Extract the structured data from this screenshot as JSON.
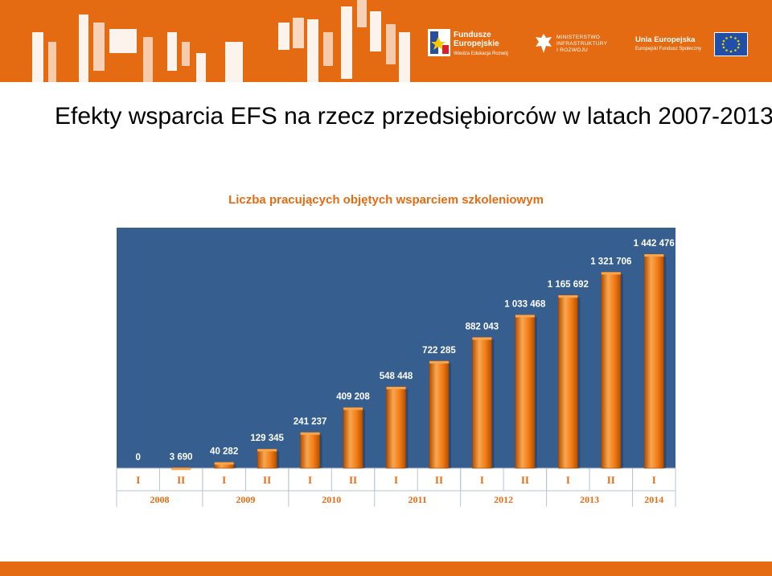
{
  "page": {
    "title": "Efekty wsparcia EFS na rzecz przedsiębiorców w latach 2007-2013"
  },
  "logos": {
    "fe": {
      "line1": "Fundusze",
      "line2": "Europejskie",
      "line3": "Wiedza Edukacja Rozwój"
    },
    "ministry": {
      "line1": "MINISTERSTWO",
      "line2": "INFRASTRUKTURY",
      "line3": "I ROZWOJU"
    },
    "eu": {
      "line1": "Unia Europejska",
      "line2": "Europejski Fundusz Społeczny"
    }
  },
  "colors": {
    "banner": "#e56b12",
    "plot_bg": "#365e8e",
    "bar": "#f07a14",
    "bar_light": "#f9a650",
    "bar_dark": "#b44f00",
    "axis_text": "#e56b12",
    "grid": "#b9c3cf"
  },
  "chart_data": {
    "type": "bar",
    "title": "Liczba pracujących objętych wsparciem szkoleniowym",
    "categories": [
      "I",
      "II",
      "I",
      "II",
      "I",
      "II",
      "I",
      "II",
      "I",
      "II",
      "I",
      "II",
      "I"
    ],
    "groups": [
      {
        "label": "2008",
        "span": 2
      },
      {
        "label": "2009",
        "span": 2
      },
      {
        "label": "2010",
        "span": 2
      },
      {
        "label": "2011",
        "span": 2
      },
      {
        "label": "2012",
        "span": 2
      },
      {
        "label": "2013",
        "span": 2
      },
      {
        "label": "2014",
        "span": 1
      }
    ],
    "values": [
      0,
      3690,
      40282,
      129345,
      241237,
      409208,
      548448,
      722285,
      882043,
      1033468,
      1165692,
      1321706,
      1442476
    ],
    "data_labels": [
      "0",
      "3 690",
      "40 282",
      "129 345",
      "241 237",
      "409 208",
      "548 448",
      "722 285",
      "882 043",
      "1 033 468",
      "1 165 692",
      "1 321 706",
      "1 442 476"
    ],
    "ylim": [
      0,
      1600000
    ],
    "grid": false,
    "legend": "none"
  }
}
